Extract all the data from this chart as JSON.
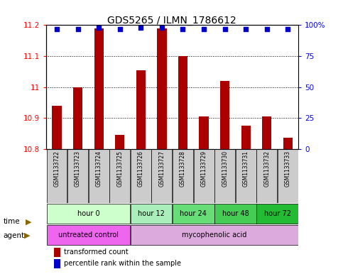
{
  "title": "GDS5265 / ILMN_1786612",
  "samples": [
    "GSM1133722",
    "GSM1133723",
    "GSM1133724",
    "GSM1133725",
    "GSM1133726",
    "GSM1133727",
    "GSM1133728",
    "GSM1133729",
    "GSM1133730",
    "GSM1133731",
    "GSM1133732",
    "GSM1133733"
  ],
  "transformed_counts": [
    10.94,
    11.0,
    11.19,
    10.845,
    11.055,
    11.19,
    11.1,
    10.905,
    11.02,
    10.875,
    10.905,
    10.835
  ],
  "percentile_ranks": [
    97,
    97,
    98,
    97,
    98,
    98,
    97,
    97,
    97,
    97,
    97,
    97
  ],
  "ylim_left": [
    10.8,
    11.2
  ],
  "ylim_right": [
    0,
    100
  ],
  "yticks_left": [
    10.8,
    10.9,
    11.0,
    11.1,
    11.2
  ],
  "yticks_right": [
    0,
    25,
    50,
    75,
    100
  ],
  "bar_color": "#AA0000",
  "dot_color": "#0000CC",
  "bar_bottom": 10.8,
  "time_groups": [
    {
      "label": "hour 0",
      "indices": [
        0,
        1,
        2,
        3
      ],
      "color": "#CCFFCC"
    },
    {
      "label": "hour 12",
      "indices": [
        4,
        5
      ],
      "color": "#AAEEBB"
    },
    {
      "label": "hour 24",
      "indices": [
        6,
        7
      ],
      "color": "#66DD77"
    },
    {
      "label": "hour 48",
      "indices": [
        8,
        9
      ],
      "color": "#44CC55"
    },
    {
      "label": "hour 72",
      "indices": [
        10,
        11
      ],
      "color": "#22BB33"
    }
  ],
  "agent_groups": [
    {
      "label": "untreated control",
      "indices": [
        0,
        1,
        2,
        3
      ],
      "color": "#EE66EE"
    },
    {
      "label": "mycophenolic acid",
      "indices": [
        4,
        5,
        6,
        7,
        8,
        9,
        10,
        11
      ],
      "color": "#DDAADD"
    }
  ],
  "legend_items": [
    {
      "label": "transformed count",
      "color": "#AA0000"
    },
    {
      "label": "percentile rank within the sample",
      "color": "#0000CC"
    }
  ],
  "sample_bg_color": "#CCCCCC",
  "title_fontsize": 10,
  "tick_fontsize": 7.5,
  "bar_width": 0.45
}
